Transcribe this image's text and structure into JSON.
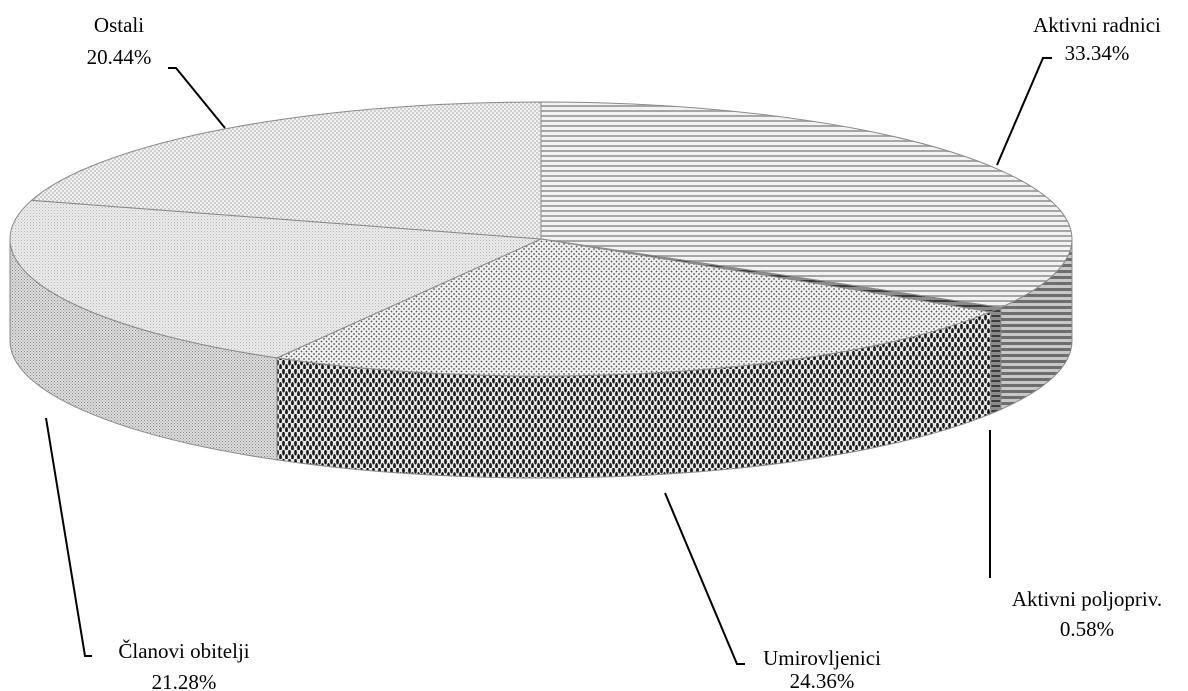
{
  "chart_data": {
    "type": "pie",
    "style": "3d",
    "slices": [
      {
        "label": "Aktivni  radnici",
        "value": 33.34,
        "value_text": "33.34%",
        "pattern": "horizontal-stripes"
      },
      {
        "label": "Aktivni poljopriv.",
        "value": 0.58,
        "value_text": "0.58%",
        "pattern": "dark-stripes"
      },
      {
        "label": "Umirovljenici",
        "value": 24.36,
        "value_text": "24.36%",
        "pattern": "dots"
      },
      {
        "label": "Članovi obitelji",
        "value": 21.28,
        "value_text": "21.28%",
        "pattern": "fine-texture"
      },
      {
        "label": "Ostali",
        "value": 20.44,
        "value_text": "20.44%",
        "pattern": "fine-dots"
      }
    ]
  }
}
